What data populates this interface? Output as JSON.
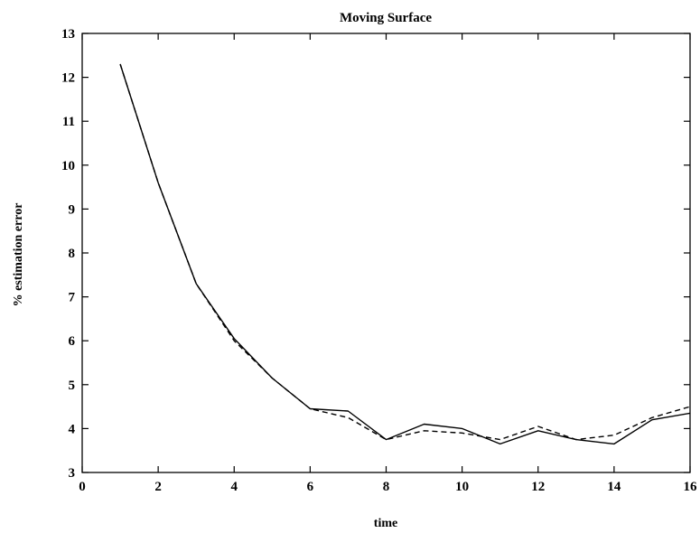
{
  "chart_data": {
    "type": "line",
    "title": "Moving Surface",
    "xlabel": "time",
    "ylabel": "% estimation error",
    "xlim": [
      0,
      16
    ],
    "ylim": [
      3,
      13
    ],
    "xticks": [
      0,
      2,
      4,
      6,
      8,
      10,
      12,
      14,
      16
    ],
    "yticks": [
      3,
      4,
      5,
      6,
      7,
      8,
      9,
      10,
      11,
      12,
      13
    ],
    "grid": false,
    "legend": "none",
    "series": [
      {
        "style": "solid",
        "x": [
          1,
          2,
          3,
          4,
          5,
          6,
          7,
          8,
          9,
          10,
          11,
          12,
          13,
          14,
          15,
          16
        ],
        "y": [
          12.3,
          9.6,
          7.3,
          6.05,
          5.15,
          4.45,
          4.4,
          3.75,
          4.1,
          4.0,
          3.65,
          3.95,
          3.75,
          3.65,
          4.2,
          4.35
        ]
      },
      {
        "style": "dashed",
        "x": [
          1,
          2,
          3,
          4,
          5,
          6,
          7,
          8,
          9,
          10,
          11,
          12,
          13,
          14,
          15,
          16
        ],
        "y": [
          12.3,
          9.6,
          7.3,
          6.0,
          5.15,
          4.45,
          4.25,
          3.75,
          3.95,
          3.9,
          3.75,
          4.05,
          3.75,
          3.85,
          4.25,
          4.5
        ]
      }
    ]
  }
}
